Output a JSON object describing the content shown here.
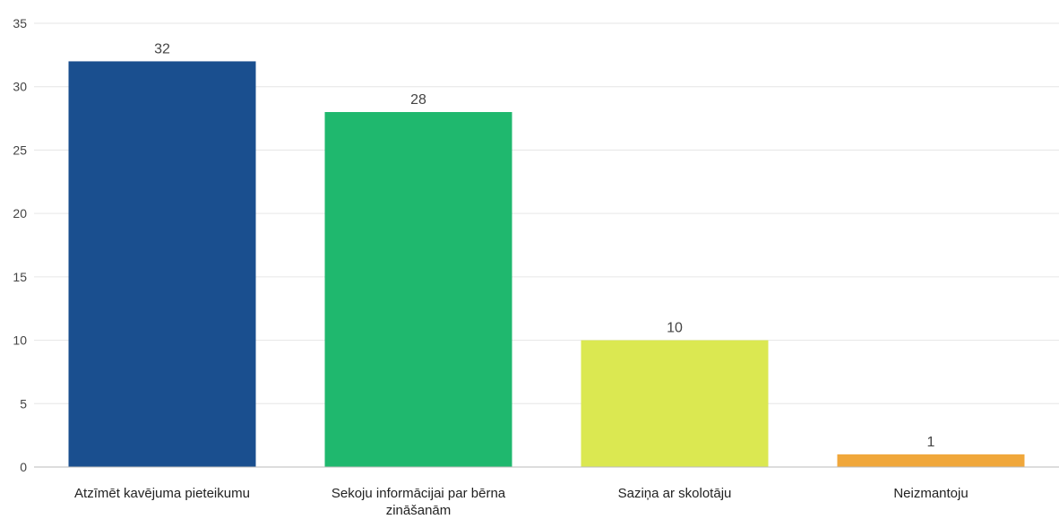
{
  "chart_data": {
    "type": "bar",
    "categories": [
      [
        "Atzīmēt kavējuma pieteikumu"
      ],
      [
        "Sekoju informācijai par bērna",
        "zināšanām"
      ],
      [
        "Saziņa ar skolotāju"
      ],
      [
        "Neizmantoju"
      ]
    ],
    "values": [
      32,
      28,
      10,
      1
    ],
    "colors": [
      "#1a4f8f",
      "#1fb86e",
      "#dbe851",
      "#f0a73b"
    ],
    "ylim": [
      0,
      35
    ],
    "yticks": [
      0,
      5,
      10,
      15,
      20,
      25,
      30,
      35
    ],
    "grid": true,
    "legend": "none",
    "title": "",
    "xlabel": "",
    "ylabel": ""
  }
}
